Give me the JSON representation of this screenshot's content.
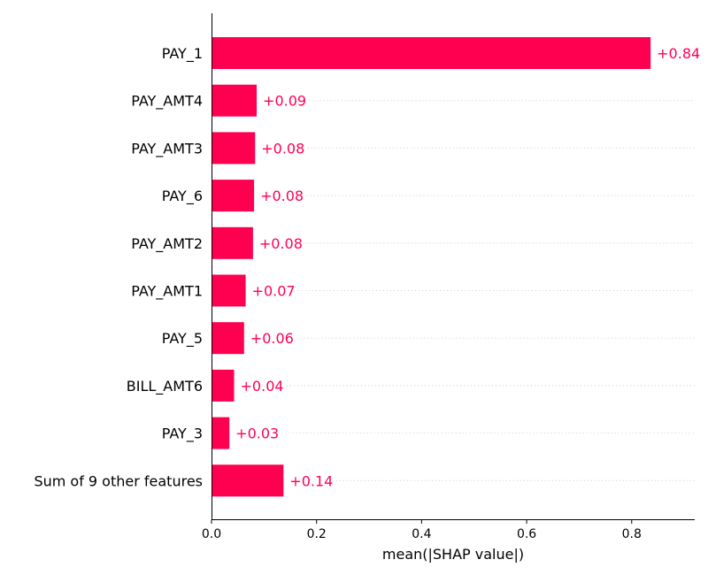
{
  "chart_data": {
    "type": "bar",
    "orientation": "horizontal",
    "categories": [
      "PAY_1",
      "PAY_AMT4",
      "PAY_AMT3",
      "PAY_6",
      "PAY_AMT2",
      "PAY_AMT1",
      "PAY_5",
      "BILL_AMT6",
      "PAY_3",
      "Sum of 9 other features"
    ],
    "values": [
      0.836,
      0.086,
      0.083,
      0.081,
      0.079,
      0.065,
      0.062,
      0.043,
      0.034,
      0.137
    ],
    "value_labels": [
      "+0.84",
      "+0.09",
      "+0.08",
      "+0.08",
      "+0.08",
      "+0.07",
      "+0.06",
      "+0.04",
      "+0.03",
      "+0.14"
    ],
    "xlabel": "mean(|SHAP value|)",
    "ylabel": "",
    "xlim": [
      0,
      0.92
    ],
    "xticks": [
      0.0,
      0.2,
      0.4,
      0.6,
      0.8
    ],
    "xtick_labels": [
      "0.0",
      "0.2",
      "0.4",
      "0.6",
      "0.8"
    ],
    "bar_color": "#ff0051",
    "gridlines": "dotted horizontal per row"
  }
}
